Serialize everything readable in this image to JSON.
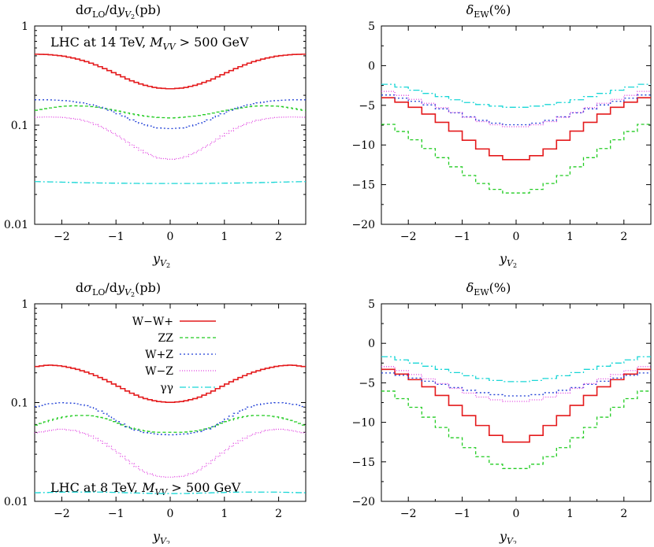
{
  "colors": {
    "WmWp": "#e41a1c",
    "ZZ": "#22cc22",
    "WpZ": "#1f3fd6",
    "WmZ": "#e040e0",
    "gg": "#19d6d6"
  },
  "chart_data": [
    {
      "id": "xs14",
      "type": "line",
      "title": "dσLO/dyV2(pb)",
      "xlabel": "yV2",
      "ylabel": "dσLO/dyV2(pb)",
      "xlim": [
        -2.5,
        2.5
      ],
      "ylim": [
        0.01,
        1
      ],
      "yscale": "log",
      "xticks": [
        "−2",
        "−1",
        "0",
        "1",
        "2"
      ],
      "xtick_values": [
        -2,
        -1,
        0,
        1,
        2
      ],
      "yticks": [
        "0.01",
        "0.1",
        "1"
      ],
      "ytick_values": [
        0.01,
        0.1,
        1
      ],
      "annotation": "LHC at 14 TeV, MVV > 500 GeV",
      "annotation_parts": {
        "text": "LHC at 14 TeV, ",
        "var": "M",
        "sub": "VV",
        "rest": " > 500 GeV"
      },
      "x": [
        -2.5,
        -2.25,
        -2.0,
        -1.75,
        -1.5,
        -1.25,
        -1.0,
        -0.75,
        -0.5,
        -0.25,
        0.0,
        0.25,
        0.5,
        0.75,
        1.0,
        1.25,
        1.5,
        1.75,
        2.0,
        2.25,
        2.5
      ],
      "series": [
        {
          "name": "W−W+",
          "key": "WmWp",
          "dash": "",
          "values": [
            0.52,
            0.515,
            0.5,
            0.47,
            0.43,
            0.38,
            0.33,
            0.285,
            0.255,
            0.237,
            0.232,
            0.237,
            0.255,
            0.285,
            0.33,
            0.38,
            0.43,
            0.47,
            0.5,
            0.515,
            0.52
          ]
        },
        {
          "name": "ZZ",
          "key": "ZZ",
          "dash": "4,3",
          "values": [
            0.14,
            0.148,
            0.155,
            0.157,
            0.155,
            0.148,
            0.14,
            0.131,
            0.124,
            0.12,
            0.118,
            0.12,
            0.124,
            0.131,
            0.14,
            0.148,
            0.155,
            0.157,
            0.155,
            0.148,
            0.14
          ]
        },
        {
          "name": "W+Z",
          "key": "WpZ",
          "dash": "2,3",
          "values": [
            0.18,
            0.18,
            0.178,
            0.172,
            0.163,
            0.15,
            0.133,
            0.115,
            0.102,
            0.094,
            0.092,
            0.094,
            0.102,
            0.115,
            0.133,
            0.15,
            0.163,
            0.172,
            0.178,
            0.18,
            0.18
          ]
        },
        {
          "name": "W−Z",
          "key": "WmZ",
          "dash": "1,2",
          "values": [
            0.12,
            0.121,
            0.12,
            0.116,
            0.108,
            0.095,
            0.08,
            0.065,
            0.054,
            0.047,
            0.045,
            0.047,
            0.054,
            0.065,
            0.08,
            0.095,
            0.108,
            0.116,
            0.12,
            0.121,
            0.12
          ]
        },
        {
          "name": "γγ",
          "key": "gg",
          "dash": "8,3,2,3",
          "values": [
            0.027,
            0.0268,
            0.0266,
            0.0264,
            0.0262,
            0.0261,
            0.026,
            0.0259,
            0.0258,
            0.0258,
            0.0258,
            0.0258,
            0.0258,
            0.0259,
            0.026,
            0.0261,
            0.0262,
            0.0264,
            0.0266,
            0.0268,
            0.027
          ]
        }
      ]
    },
    {
      "id": "ew14",
      "type": "line",
      "title": "δEW(%)",
      "xlabel": "yV2",
      "ylabel": "δEW(%)",
      "xlim": [
        -2.5,
        2.5
      ],
      "ylim": [
        -20,
        5
      ],
      "yscale": "linear",
      "xticks": [
        "−2",
        "−1",
        "0",
        "1",
        "2"
      ],
      "xtick_values": [
        -2,
        -1,
        0,
        1,
        2
      ],
      "yticks": [
        "5",
        "0",
        "−5",
        "−10",
        "−15",
        "−20"
      ],
      "ytick_values": [
        5,
        0,
        -5,
        -10,
        -15,
        -20
      ],
      "x": [
        -2.5,
        -2.25,
        -2.0,
        -1.75,
        -1.5,
        -1.25,
        -1.0,
        -0.75,
        -0.5,
        -0.25,
        0.0,
        0.25,
        0.5,
        0.75,
        1.0,
        1.25,
        1.5,
        1.75,
        2.0,
        2.25,
        2.5
      ],
      "series": [
        {
          "name": "W−W+",
          "key": "WmWp",
          "dash": "",
          "values": [
            -3.8,
            -4.3,
            -4.9,
            -5.6,
            -6.6,
            -7.7,
            -8.8,
            -10.0,
            -11.0,
            -11.7,
            -12.0,
            -11.7,
            -11.0,
            -10.0,
            -8.8,
            -7.7,
            -6.6,
            -5.6,
            -4.9,
            -4.3,
            -3.8
          ]
        },
        {
          "name": "ZZ",
          "key": "ZZ",
          "dash": "4,3",
          "values": [
            -7.0,
            -7.8,
            -8.8,
            -9.9,
            -11.0,
            -12.2,
            -13.3,
            -14.4,
            -15.3,
            -15.9,
            -16.2,
            -15.9,
            -15.3,
            -14.4,
            -13.3,
            -12.2,
            -11.0,
            -9.9,
            -8.8,
            -7.8,
            -7.0
          ]
        },
        {
          "name": "W+Z",
          "key": "WpZ",
          "dash": "2,3",
          "values": [
            -3.5,
            -3.9,
            -4.3,
            -4.7,
            -5.2,
            -5.7,
            -6.2,
            -6.7,
            -7.1,
            -7.4,
            -7.5,
            -7.4,
            -7.1,
            -6.7,
            -6.2,
            -5.7,
            -5.2,
            -4.7,
            -4.3,
            -3.9,
            -3.5
          ]
        },
        {
          "name": "W−Z",
          "key": "WmZ",
          "dash": "1,2",
          "values": [
            -3.0,
            -3.5,
            -4.0,
            -4.5,
            -5.0,
            -5.6,
            -6.2,
            -6.8,
            -7.3,
            -7.6,
            -7.8,
            -7.6,
            -7.3,
            -6.8,
            -6.2,
            -5.6,
            -5.0,
            -4.5,
            -4.0,
            -3.5,
            -3.0
          ]
        },
        {
          "name": "γγ",
          "key": "gg",
          "dash": "8,3,2,3",
          "values": [
            -2.2,
            -2.5,
            -2.9,
            -3.3,
            -3.7,
            -4.1,
            -4.5,
            -4.8,
            -5.0,
            -5.2,
            -5.3,
            -5.2,
            -5.0,
            -4.8,
            -4.5,
            -4.1,
            -3.7,
            -3.3,
            -2.9,
            -2.5,
            -2.2
          ]
        }
      ]
    },
    {
      "id": "xs8",
      "type": "line",
      "title": "dσLO/dyV2(pb)",
      "xlabel": "yV2",
      "ylabel": "dσLO/dyV2(pb)",
      "xlim": [
        -2.5,
        2.5
      ],
      "ylim": [
        0.01,
        1
      ],
      "yscale": "log",
      "xticks": [
        "−2",
        "−1",
        "0",
        "1",
        "2"
      ],
      "xtick_values": [
        -2,
        -1,
        0,
        1,
        2
      ],
      "yticks": [
        "0.01",
        "0.1",
        "1"
      ],
      "ytick_values": [
        0.01,
        0.1,
        1
      ],
      "annotation": "LHC at 8 TeV, MVV > 500 GeV",
      "annotation_parts": {
        "text": "LHC at 8 TeV, ",
        "var": "M",
        "sub": "VV",
        "rest": " > 500 GeV"
      },
      "legend": [
        "W−W+",
        "ZZ",
        "W+Z",
        "W−Z",
        "γγ"
      ],
      "x": [
        -2.5,
        -2.25,
        -2.0,
        -1.75,
        -1.5,
        -1.25,
        -1.0,
        -0.75,
        -0.5,
        -0.25,
        0.0,
        0.25,
        0.5,
        0.75,
        1.0,
        1.25,
        1.5,
        1.75,
        2.0,
        2.25,
        2.5
      ],
      "series": [
        {
          "name": "W−W+",
          "key": "WmWp",
          "dash": "",
          "values": [
            0.23,
            0.24,
            0.235,
            0.22,
            0.2,
            0.175,
            0.15,
            0.127,
            0.111,
            0.103,
            0.1,
            0.103,
            0.111,
            0.127,
            0.15,
            0.175,
            0.2,
            0.22,
            0.235,
            0.24,
            0.23
          ]
        },
        {
          "name": "ZZ",
          "key": "ZZ",
          "dash": "4,3",
          "values": [
            0.058,
            0.065,
            0.071,
            0.074,
            0.074,
            0.07,
            0.063,
            0.056,
            0.052,
            0.05,
            0.05,
            0.05,
            0.052,
            0.056,
            0.063,
            0.07,
            0.074,
            0.074,
            0.071,
            0.065,
            0.058
          ]
        },
        {
          "name": "W+Z",
          "key": "WpZ",
          "dash": "2,3",
          "values": [
            0.09,
            0.097,
            0.1,
            0.098,
            0.092,
            0.08,
            0.066,
            0.055,
            0.05,
            0.048,
            0.047,
            0.048,
            0.05,
            0.055,
            0.066,
            0.08,
            0.092,
            0.098,
            0.1,
            0.097,
            0.09
          ]
        },
        {
          "name": "W−Z",
          "key": "WmZ",
          "dash": "1,2",
          "values": [
            0.049,
            0.052,
            0.054,
            0.052,
            0.047,
            0.04,
            0.032,
            0.025,
            0.02,
            0.018,
            0.0175,
            0.018,
            0.02,
            0.025,
            0.032,
            0.04,
            0.047,
            0.052,
            0.054,
            0.052,
            0.049
          ]
        },
        {
          "name": "γγ",
          "key": "gg",
          "dash": "8,3,2,3",
          "values": [
            0.0122,
            0.0123,
            0.0124,
            0.0124,
            0.0124,
            0.0124,
            0.0123,
            0.0122,
            0.0121,
            0.012,
            0.012,
            0.012,
            0.0121,
            0.0122,
            0.0123,
            0.0124,
            0.0124,
            0.0124,
            0.0124,
            0.0123,
            0.0122
          ]
        }
      ]
    },
    {
      "id": "ew8",
      "type": "line",
      "title": "δEW(%)",
      "xlabel": "yV2",
      "ylabel": "δEW(%)",
      "xlim": [
        -2.5,
        2.5
      ],
      "ylim": [
        -20,
        5
      ],
      "yscale": "linear",
      "xticks": [
        "−2",
        "−1",
        "0",
        "1",
        "2"
      ],
      "xtick_values": [
        -2,
        -1,
        0,
        1,
        2
      ],
      "yticks": [
        "5",
        "0",
        "−5",
        "−10",
        "−15",
        "−20"
      ],
      "ytick_values": [
        5,
        0,
        -5,
        -10,
        -15,
        -20
      ],
      "x": [
        -2.5,
        -2.25,
        -2.0,
        -1.75,
        -1.5,
        -1.25,
        -1.0,
        -0.75,
        -0.5,
        -0.25,
        0.0,
        0.25,
        0.5,
        0.75,
        1.0,
        1.25,
        1.5,
        1.75,
        2.0,
        2.25,
        2.5
      ],
      "series": [
        {
          "name": "W−W+",
          "key": "WmWp",
          "dash": "",
          "values": [
            -3.0,
            -3.6,
            -4.2,
            -5.0,
            -6.0,
            -7.2,
            -8.5,
            -9.8,
            -11.0,
            -12.3,
            -12.7,
            -12.3,
            -11.0,
            -9.8,
            -8.5,
            -7.2,
            -6.0,
            -5.0,
            -4.2,
            -3.6,
            -3.0
          ]
        },
        {
          "name": "ZZ",
          "key": "ZZ",
          "dash": "4,3",
          "values": [
            -5.6,
            -6.5,
            -7.5,
            -8.7,
            -10.0,
            -11.3,
            -12.6,
            -13.8,
            -14.9,
            -15.7,
            -16.0,
            -15.7,
            -14.9,
            -13.8,
            -12.6,
            -11.3,
            -10.0,
            -8.7,
            -7.5,
            -6.5,
            -5.6
          ]
        },
        {
          "name": "W+Z",
          "key": "WpZ",
          "dash": "2,3",
          "values": [
            -3.6,
            -3.9,
            -4.2,
            -4.6,
            -5.0,
            -5.4,
            -5.8,
            -6.1,
            -6.4,
            -6.6,
            -6.7,
            -6.6,
            -6.4,
            -6.1,
            -5.8,
            -5.4,
            -5.0,
            -4.6,
            -4.2,
            -3.9,
            -3.6
          ]
        },
        {
          "name": "W−Z",
          "key": "WmZ",
          "dash": "1,2",
          "values": [
            -2.7,
            -3.2,
            -3.7,
            -4.2,
            -4.8,
            -5.4,
            -6.0,
            -6.6,
            -7.0,
            -7.3,
            -7.4,
            -7.3,
            -7.0,
            -6.6,
            -6.0,
            -5.4,
            -4.8,
            -4.2,
            -3.7,
            -3.2,
            -2.7
          ]
        },
        {
          "name": "γγ",
          "key": "gg",
          "dash": "8,3,2,3",
          "values": [
            -1.5,
            -1.9,
            -2.3,
            -2.7,
            -3.1,
            -3.5,
            -3.9,
            -4.3,
            -4.6,
            -4.8,
            -4.9,
            -4.8,
            -4.6,
            -4.3,
            -3.9,
            -3.5,
            -3.1,
            -2.7,
            -2.3,
            -1.9,
            -1.5
          ]
        }
      ]
    }
  ]
}
